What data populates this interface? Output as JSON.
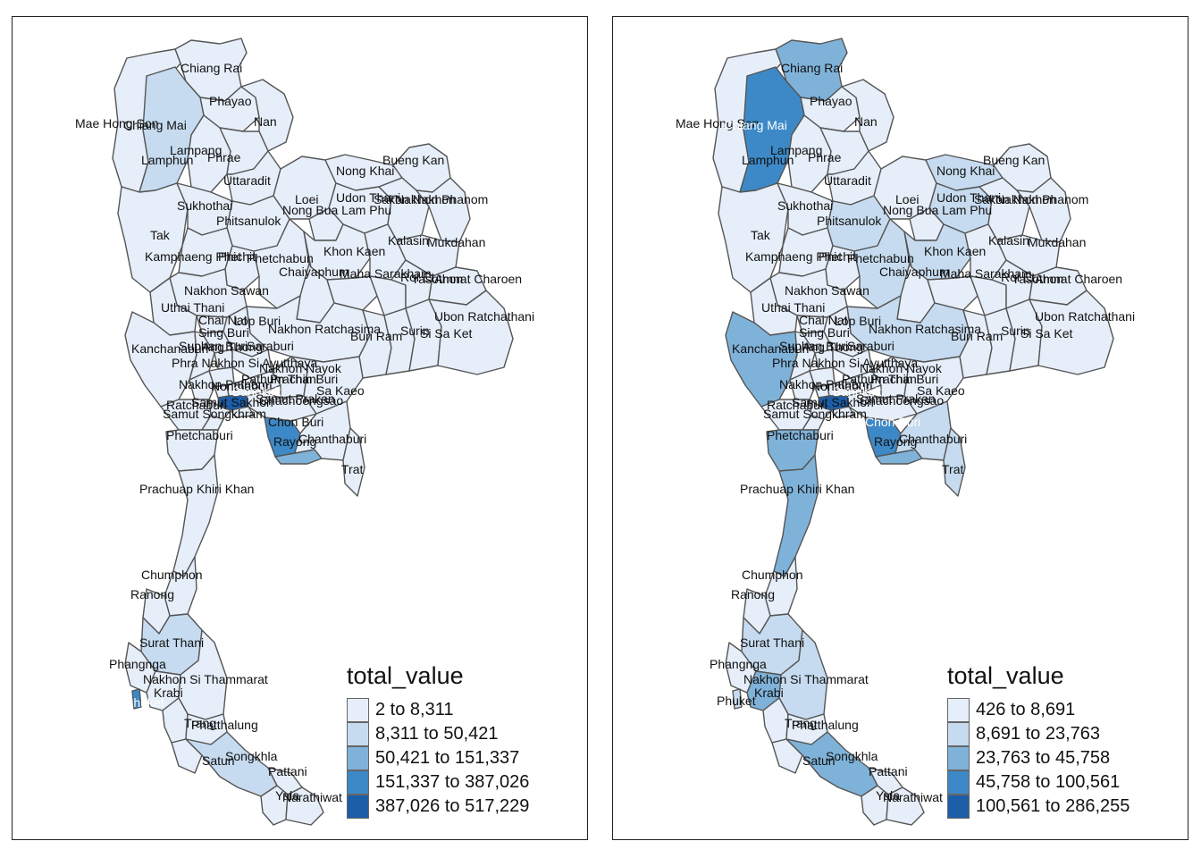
{
  "legend_colors": [
    "#e6eef9",
    "#c6dbef",
    "#7fb2d9",
    "#3d89c7",
    "#1d5ea9"
  ],
  "maps": [
    {
      "legend": {
        "title": "total_value",
        "classes": [
          "2 to 8,311",
          "8,311 to 50,421",
          "50,421 to 151,337",
          "151,337 to 387,026",
          "387,026 to 517,229"
        ]
      },
      "labels": {
        "chiang_rai": "Chiang Rai",
        "phayao": "Phayao",
        "nan": "Nan",
        "mae_hong_son": "Mae Hong Son",
        "chiang_mai": "Chiang Mai",
        "lampang": "Lampang",
        "lamphun": "Lamphun",
        "phrae": "Phrae",
        "uttaradit": "Uttaradit",
        "sukhothai": "Sukhothai",
        "phitsanulok": "Phitsanulok",
        "tak": "Tak",
        "kamphaeng_phet": "Kamphaeng Phet",
        "phichit": "Phichit",
        "phetchabun": "Phetchabun",
        "nakhon_sawan": "Nakhon Sawan",
        "uthai_thani": "Uthai Thani",
        "chai_nat": "Chai Nat",
        "lop_buri": "Lop Buri",
        "sing_buri": "Sing Buri",
        "kanchanaburi": "Kanchanaburi",
        "suphan_buri": "Suphan Buri",
        "ang_thong": "Ang Thong",
        "saraburi": "Saraburi",
        "phra_nakhon": "Phra Nakhon Si Ayutthaya",
        "nakhon_nayok": "Nakhon Nayok",
        "nakhon_pathom": "Nakhon Pathom",
        "nonthaburi": "Nonthaburi",
        "pathum_thani": "Pathum Thani",
        "prachin_buri": "Prachin Buri",
        "bangkok": "Bangkok",
        "samut_prakan": "Samut Prakan",
        "samut_sakhon": "Samut Sakhon",
        "ratchaburi": "Ratchaburi",
        "chachoengsao": "Chachoengsao",
        "sa_kaeo": "Sa Kaeo",
        "samut_songkhram": "Samut Songkhram",
        "phetchaburi": "Phetchaburi",
        "chon_buri": "Chon Buri",
        "rayong": "Rayong",
        "chanthaburi": "Chanthaburi",
        "trat": "Trat",
        "prachuap": "Prachuap Khiri Khan",
        "loei": "Loei",
        "nong_khai": "Nong Khai",
        "bueng_kan": "Bueng Kan",
        "udon_thani": "Udon Thani",
        "sakon_nakhon": "Sakon Nakhon",
        "nakhon_phanom": "Nakhon Phanom",
        "nong_bua": "Nong Bua Lam Phu",
        "khon_kaen": "Khon Kaen",
        "kalasin": "Kalasin",
        "mukdahan": "Mukdahan",
        "chaiyaphum": "Chaiyaphum",
        "maha_sarakham": "Maha Sarakham",
        "roi_et": "Roi Et",
        "yasothon": "Yasothon",
        "amnat_charoen": "Amnat Charoen",
        "nakhon_ratchasima": "Nakhon Ratchasima",
        "buri_ram": "Buri Ram",
        "surin": "Surin",
        "si_sa_ket": "Si Sa Ket",
        "ubon": "Ubon Ratchathani",
        "chumphon": "Chumphon",
        "ranong": "Ranong",
        "surat_thani": "Surat Thani",
        "phangnga": "Phangnga",
        "phuket": "Phuket",
        "nakhon_si": "Nakhon Si Thammarat",
        "krabi": "Krabi",
        "trang": "Trang",
        "phatthalung": "Phatthalung",
        "satun": "Satun",
        "songkhla": "Songkhla",
        "pattani": "Pattani",
        "yala": "Yala",
        "narathiwat": "Narathiwat"
      }
    },
    {
      "legend": {
        "title": "total_value",
        "classes": [
          "426 to 8,691",
          "8,691 to 23,763",
          "23,763 to 45,758",
          "45,758 to 100,561",
          "100,561 to 286,255"
        ]
      },
      "labels": {
        "chiang_rai": "Chiang Rai",
        "phayao": "Phayao",
        "nan": "Nan",
        "mae_hong_son": "Mae Hong Son",
        "chiang_mai": "Chiang Mai",
        "lampang": "Lampang",
        "lamphun": "Lamphun",
        "phrae": "Phrae",
        "uttaradit": "Uttaradit",
        "sukhothai": "Sukhothai",
        "phitsanulok": "Phitsanulok",
        "tak": "Tak",
        "kamphaeng_phet": "Kamphaeng Phet",
        "phichit": "Phichit",
        "phetchabun": "Phetchabun",
        "nakhon_sawan": "Nakhon Sawan",
        "uthai_thani": "Uthai Thani",
        "chai_nat": "Chai Nat",
        "lop_buri": "Lop Buri",
        "sing_buri": "Sing Buri",
        "kanchanaburi": "Kanchanaburi",
        "suphan_buri": "Suphan Buri",
        "ang_thong": "Ang Thong",
        "saraburi": "Saraburi",
        "phra_nakhon": "Phra Nakhon Si Ayutthaya",
        "nakhon_nayok": "Nakhon Nayok",
        "nakhon_pathom": "Nakhon Pathom",
        "nonthaburi": "Nonthaburi",
        "pathum_thani": "Pathum Thani",
        "prachin_buri": "Prachin Buri",
        "bangkok": "Bangkok",
        "samut_prakan": "Samut Prakan",
        "samut_sakhon": "Samut Sakhon",
        "ratchaburi": "Ratchaburi",
        "chachoengsao": "Chachoengsao",
        "sa_kaeo": "Sa Kaeo",
        "samut_songkhram": "Samut Songkhram",
        "phetchaburi": "Phetchaburi",
        "chon_buri": "Chon Buri",
        "rayong": "Rayong",
        "chanthaburi": "Chanthaburi",
        "trat": "Trat",
        "prachuap": "Prachuap Khiri Khan",
        "loei": "Loei",
        "nong_khai": "Nong Khai",
        "bueng_kan": "Bueng Kan",
        "udon_thani": "Udon Thani",
        "sakon_nakhon": "Sakon Nakhon",
        "nakhon_phanom": "Nakhon Phanom",
        "nong_bua": "Nong Bua Lam Phu",
        "khon_kaen": "Khon Kaen",
        "kalasin": "Kalasin",
        "mukdahan": "Mukdahan",
        "chaiyaphum": "Chaiyaphum",
        "maha_sarakham": "Maha Sarakham",
        "roi_et": "Roi Et",
        "yasothon": "Yasothon",
        "amnat_charoen": "Amnat Charoen",
        "nakhon_ratchasima": "Nakhon Ratchasima",
        "buri_ram": "Buri Ram",
        "surin": "Surin",
        "si_sa_ket": "Si Sa Ket",
        "ubon": "Ubon Ratchathani",
        "chumphon": "Chumphon",
        "ranong": "Ranong",
        "surat_thani": "Surat Thani",
        "phangnga": "Phangnga",
        "phuket": "Phuket",
        "nakhon_si": "Nakhon Si Thammarat",
        "krabi": "Krabi",
        "trang": "Trang",
        "phatthalung": "Phatthalung",
        "satun": "Satun",
        "songkhla": "Songkhla",
        "pattani": "Pattani",
        "yala": "Yala",
        "narathiwat": "Narathiwat"
      }
    }
  ]
}
